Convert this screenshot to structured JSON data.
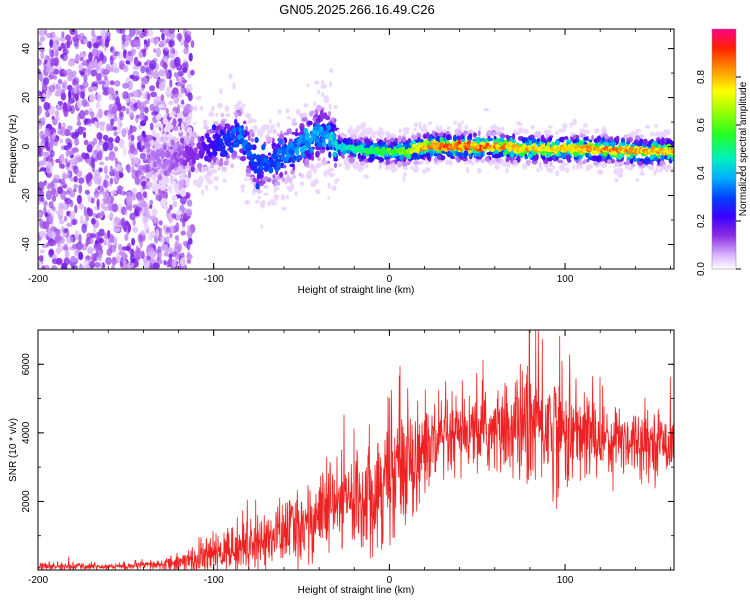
{
  "figure": {
    "title": "GN05.2025.266.16.49.C26"
  },
  "chart_data": [
    {
      "type": "heatmap",
      "xlabel": "Height of straight line (km)",
      "ylabel": "Frequency (Hz)",
      "xlim": [
        -200,
        162
      ],
      "ylim": [
        -50,
        48
      ],
      "xticks": [
        -200,
        -100,
        0,
        100
      ],
      "yticks": [
        -40,
        -20,
        0,
        20,
        40
      ],
      "colorbar": {
        "label": "Normalized spectral amplitude",
        "range": [
          0,
          1
        ],
        "ticks": [
          "0.0",
          "0.2",
          "0.4",
          "0.6",
          "0.8"
        ]
      },
      "ridge": {
        "description_points_x": [
          -130,
          -110,
          -95,
          -85,
          -75,
          -65,
          -55,
          -45,
          -38,
          -30,
          -20,
          -10,
          0,
          10,
          20,
          40,
          60,
          80,
          100,
          120,
          140,
          160
        ],
        "frequency_hz": [
          -5,
          -3,
          2,
          5,
          -8,
          -5,
          -2,
          3,
          6,
          0,
          -1,
          -2,
          -2,
          -2,
          0,
          0,
          0,
          -1,
          -1,
          -1,
          -2,
          -2
        ],
        "peak_amplitude": [
          0.1,
          0.15,
          0.28,
          0.35,
          0.3,
          0.32,
          0.35,
          0.4,
          0.38,
          0.45,
          0.5,
          0.55,
          0.6,
          0.65,
          0.85,
          0.9,
          0.85,
          0.8,
          0.8,
          0.85,
          0.85,
          0.8
        ]
      }
    },
    {
      "type": "line",
      "xlabel": "Height of straight line (km)",
      "ylabel": "SNR (10 * v/v)",
      "xlim": [
        -200,
        162
      ],
      "ylim": [
        0,
        7000
      ],
      "xticks": [
        -200,
        -100,
        0,
        100
      ],
      "yticks": [
        2000,
        4000,
        6000
      ],
      "series": [
        {
          "name": "SNR",
          "color": "#ee2222",
          "envelope_x": [
            -200,
            -150,
            -130,
            -110,
            -90,
            -70,
            -50,
            -30,
            -10,
            0,
            10,
            30,
            50,
            70,
            80,
            90,
            100,
            120,
            140,
            162
          ],
          "envelope_mean": [
            100,
            110,
            150,
            300,
            600,
            900,
            1300,
            1900,
            2300,
            2800,
            3300,
            3700,
            4000,
            4100,
            4300,
            4200,
            4000,
            3900,
            3800,
            3700
          ],
          "envelope_spread": [
            80,
            80,
            120,
            300,
            500,
            600,
            800,
            1000,
            1200,
            1400,
            1300,
            900,
            800,
            1000,
            1500,
            1400,
            1200,
            900,
            700,
            600
          ]
        }
      ]
    }
  ]
}
